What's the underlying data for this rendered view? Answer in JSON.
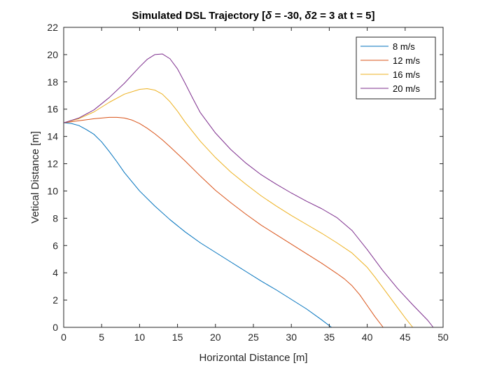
{
  "chart_data": {
    "type": "line",
    "title": "Simulated DSL Trajectory [δ = -30, δ2 = 3 at t = 5]",
    "xlabel": "Horizontal Distance [m]",
    "ylabel": "Vetical Distance [m]",
    "xlim": [
      0,
      50
    ],
    "ylim": [
      0,
      22
    ],
    "xticks": [
      "0",
      "5",
      "10",
      "15",
      "20",
      "25",
      "30",
      "35",
      "40",
      "45",
      "50"
    ],
    "yticks": [
      "0",
      "2",
      "4",
      "6",
      "8",
      "10",
      "12",
      "14",
      "16",
      "18",
      "20",
      "22"
    ],
    "grid": false,
    "legend_position": "top-right",
    "series": [
      {
        "name": "8 m/s",
        "color": "#0072BD",
        "x": [
          0,
          1,
          2,
          3,
          4,
          5,
          6,
          7,
          8,
          10,
          12,
          14,
          16,
          18,
          20,
          22,
          24,
          26,
          28,
          30,
          32,
          34,
          35.3
        ],
        "y": [
          15,
          14.95,
          14.8,
          14.5,
          14.15,
          13.6,
          12.9,
          12.15,
          11.35,
          10.0,
          8.9,
          7.9,
          7.0,
          6.2,
          5.5,
          4.8,
          4.1,
          3.4,
          2.75,
          2.05,
          1.35,
          0.55,
          0.0
        ]
      },
      {
        "name": "12 m/s",
        "color": "#D95319",
        "x": [
          0,
          2,
          4,
          6,
          7,
          8,
          9,
          10,
          11,
          12,
          13,
          14,
          16,
          18,
          20,
          22,
          24,
          26,
          28,
          30,
          32,
          34,
          36,
          37,
          38,
          39,
          40,
          41,
          42.1
        ],
        "y": [
          15,
          15.15,
          15.3,
          15.4,
          15.4,
          15.35,
          15.2,
          14.95,
          14.6,
          14.2,
          13.75,
          13.25,
          12.2,
          11.1,
          10.05,
          9.15,
          8.3,
          7.5,
          6.8,
          6.1,
          5.4,
          4.7,
          3.95,
          3.55,
          3.05,
          2.4,
          1.6,
          0.8,
          0.0
        ]
      },
      {
        "name": "16 m/s",
        "color": "#EDB120",
        "x": [
          0,
          2,
          4,
          6,
          8,
          10,
          11,
          12,
          13,
          14,
          15,
          16,
          18,
          20,
          22,
          24,
          26,
          28,
          30,
          32,
          34,
          36,
          38,
          40,
          41,
          42,
          43,
          44,
          45,
          46
        ],
        "y": [
          15,
          15.3,
          15.8,
          16.5,
          17.1,
          17.45,
          17.5,
          17.4,
          17.1,
          16.55,
          15.85,
          15.05,
          13.65,
          12.45,
          11.4,
          10.5,
          9.65,
          8.9,
          8.2,
          7.55,
          6.9,
          6.2,
          5.45,
          4.4,
          3.7,
          2.95,
          2.2,
          1.45,
          0.7,
          0.0
        ]
      },
      {
        "name": "20 m/s",
        "color": "#7E2F8E",
        "x": [
          0,
          2,
          4,
          6,
          8,
          10,
          11,
          12,
          13,
          14,
          15,
          16,
          17,
          18,
          20,
          22,
          24,
          26,
          28,
          30,
          32,
          34,
          36,
          38,
          40,
          42,
          44,
          46,
          48,
          48.7
        ],
        "y": [
          15,
          15.35,
          15.95,
          16.85,
          17.9,
          19.1,
          19.65,
          20.0,
          20.05,
          19.7,
          18.95,
          17.9,
          16.8,
          15.75,
          14.25,
          13.05,
          12.05,
          11.2,
          10.5,
          9.85,
          9.25,
          8.7,
          8.05,
          7.1,
          5.7,
          4.2,
          2.85,
          1.65,
          0.5,
          0.0
        ]
      }
    ]
  }
}
